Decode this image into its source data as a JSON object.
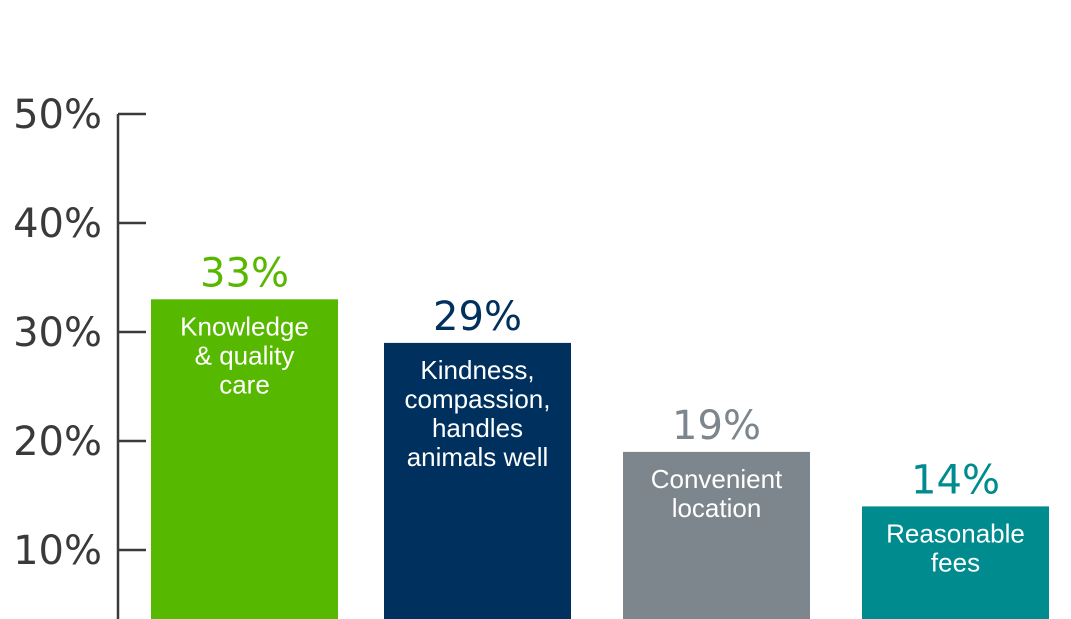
{
  "chart_data": {
    "type": "bar",
    "categories": [
      [
        "Knowledge",
        "& quality",
        "care"
      ],
      [
        "Kindness,",
        "compassion,",
        "handles",
        "animals well"
      ],
      [
        "Convenient",
        "location"
      ],
      [
        "Reasonable",
        "fees"
      ]
    ],
    "values": [
      33,
      29,
      19,
      14
    ],
    "value_labels": [
      "33%",
      "29%",
      "19%",
      "14%"
    ],
    "colors": [
      "#57b800",
      "#00305e",
      "#7d868c",
      "#008b8f"
    ],
    "y_ticks": [
      10,
      20,
      30,
      40,
      50
    ],
    "y_tick_labels": [
      "10%",
      "20%",
      "30%",
      "40%",
      "50%"
    ],
    "ylim": [
      0,
      50
    ],
    "grid": false,
    "axis_color": "#3a3a3a"
  }
}
